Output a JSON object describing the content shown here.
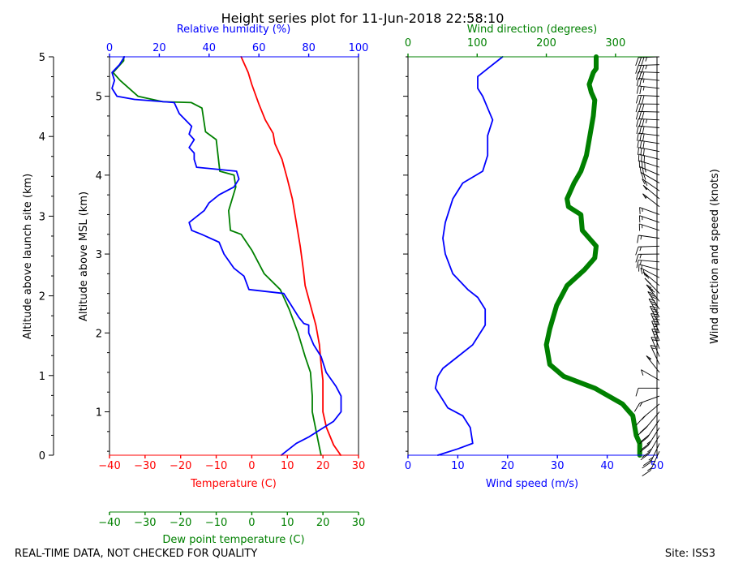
{
  "chart_data": {
    "type": "line",
    "title": "Height series plot for 11-Jun-2018 22:58:10",
    "footer_left": "REAL-TIME DATA, NOT CHECKED FOR QUALITY",
    "footer_right": "Site: ISS3",
    "colors": {
      "temperature": "#ff0000",
      "dewpoint": "#008000",
      "rh": "#0000ff",
      "wind_speed": "#0000ff",
      "wind_dir": "#008000",
      "barbs": "#000000"
    },
    "thermo_panel": {
      "xlabel_bottom": "Temperature (C)",
      "xlabel_dewpoint": "Dew point temperature (C)",
      "xlabel_top": "Relative humidity (%)",
      "ylabel_inner": "Altitude above MSL (km)",
      "ylabel_outer": "Altitude above launch site (km)",
      "xlim_temp": [
        -40,
        30
      ],
      "xticks_temp": [
        "−40",
        "−30",
        "−20",
        "−10",
        "0",
        "10",
        "20",
        "30"
      ],
      "xticks_dewpoint": [
        "−40",
        "−30",
        "−20",
        "−10",
        "0",
        "10",
        "20",
        "30"
      ],
      "xlim_rh": [
        0,
        100
      ],
      "xticks_rh": [
        "0",
        "20",
        "40",
        "60",
        "80",
        "100"
      ],
      "ylim_msl_km": [
        0.45,
        5.5
      ],
      "yticks_msl": [
        "1",
        "2",
        "3",
        "4",
        "5"
      ],
      "ylim_agl_km": [
        0,
        5
      ],
      "yticks_agl": [
        "0",
        "1",
        "2",
        "3",
        "4",
        "5"
      ],
      "series": [
        {
          "name": "Temperature",
          "axis": "temp",
          "points": [
            [
              25,
              0.45
            ],
            [
              23,
              0.58
            ],
            [
              21,
              0.8
            ],
            [
              20,
              1.0
            ],
            [
              20,
              1.2
            ],
            [
              20,
              1.4
            ],
            [
              19.5,
              1.6
            ],
            [
              19,
              1.85
            ],
            [
              18,
              2.1
            ],
            [
              16.8,
              2.3
            ],
            [
              15,
              2.6
            ],
            [
              14.5,
              2.8
            ],
            [
              13.6,
              3.1
            ],
            [
              12.5,
              3.4
            ],
            [
              11.4,
              3.7
            ],
            [
              10,
              3.95
            ],
            [
              8.5,
              4.2
            ],
            [
              6.5,
              4.4
            ],
            [
              6,
              4.53
            ],
            [
              3.8,
              4.7
            ],
            [
              2,
              4.9
            ],
            [
              0,
              5.15
            ],
            [
              -1,
              5.3
            ],
            [
              -2.5,
              5.45
            ],
            [
              -3,
              5.5
            ]
          ]
        },
        {
          "name": "Dew point",
          "axis": "temp",
          "points": [
            [
              19.5,
              0.45
            ],
            [
              19,
              0.55
            ],
            [
              17,
              1.0
            ],
            [
              17,
              1.2
            ],
            [
              16.5,
              1.5
            ],
            [
              15,
              1.7
            ],
            [
              13,
              2.0
            ],
            [
              10.5,
              2.3
            ],
            [
              8,
              2.55
            ],
            [
              3.5,
              2.75
            ],
            [
              0,
              3.05
            ],
            [
              -3,
              3.25
            ],
            [
              -6,
              3.3
            ],
            [
              -6.5,
              3.55
            ],
            [
              -4.5,
              3.85
            ],
            [
              -5,
              4.0
            ],
            [
              -9,
              4.05
            ],
            [
              -10,
              4.45
            ],
            [
              -13,
              4.55
            ],
            [
              -14,
              4.85
            ],
            [
              -17,
              4.92
            ],
            [
              -25,
              4.93
            ],
            [
              -32,
              5.0
            ],
            [
              -37,
              5.2
            ],
            [
              -39,
              5.3
            ],
            [
              -36,
              5.45
            ],
            [
              -36,
              5.5
            ]
          ]
        },
        {
          "name": "Relative humidity",
          "axis": "rh",
          "points": [
            [
              69,
              0.45
            ],
            [
              71,
              0.5
            ],
            [
              75,
              0.6
            ],
            [
              80,
              0.68
            ],
            [
              85,
              0.78
            ],
            [
              90,
              0.88
            ],
            [
              93,
              1.0
            ],
            [
              93,
              1.1
            ],
            [
              93,
              1.2
            ],
            [
              91,
              1.32
            ],
            [
              87,
              1.5
            ],
            [
              85,
              1.7
            ],
            [
              82,
              1.85
            ],
            [
              80,
              2.0
            ],
            [
              80,
              2.1
            ],
            [
              78,
              2.12
            ],
            [
              76,
              2.2
            ],
            [
              72,
              2.4
            ],
            [
              70,
              2.5
            ],
            [
              56,
              2.55
            ],
            [
              54,
              2.72
            ],
            [
              50,
              2.82
            ],
            [
              46,
              3.0
            ],
            [
              44,
              3.15
            ],
            [
              37,
              3.25
            ],
            [
              33,
              3.3
            ],
            [
              32,
              3.4
            ],
            [
              38,
              3.55
            ],
            [
              40,
              3.65
            ],
            [
              44,
              3.75
            ],
            [
              50,
              3.85
            ],
            [
              52,
              3.95
            ],
            [
              51,
              4.05
            ],
            [
              35,
              4.1
            ],
            [
              34,
              4.2
            ],
            [
              34,
              4.28
            ],
            [
              32,
              4.35
            ],
            [
              34,
              4.45
            ],
            [
              32,
              4.52
            ],
            [
              33,
              4.62
            ],
            [
              28,
              4.78
            ],
            [
              26,
              4.92
            ],
            [
              10,
              4.96
            ],
            [
              3,
              5.0
            ],
            [
              1,
              5.1
            ],
            [
              2,
              5.2
            ],
            [
              1,
              5.3
            ],
            [
              4,
              5.4
            ],
            [
              6,
              5.5
            ]
          ]
        }
      ]
    },
    "wind_panel": {
      "xlabel_bottom": "Wind speed (m/s)",
      "xlabel_top": "Wind direction (degrees)",
      "ylabel_right": "Wind direction and speed (knots)",
      "xlim_speed": [
        0,
        50
      ],
      "xticks_speed": [
        "0",
        "10",
        "20",
        "30",
        "40",
        "50"
      ],
      "xlim_dir": [
        0,
        360
      ],
      "xticks_dir": [
        "0",
        "100",
        "200",
        "300"
      ],
      "series": [
        {
          "name": "Wind speed",
          "axis": "speed",
          "points": [
            [
              6,
              0.45
            ],
            [
              10,
              0.53
            ],
            [
              13,
              0.6
            ],
            [
              12.5,
              0.8
            ],
            [
              11,
              0.95
            ],
            [
              8,
              1.05
            ],
            [
              5.5,
              1.3
            ],
            [
              6,
              1.45
            ],
            [
              7,
              1.55
            ],
            [
              10,
              1.7
            ],
            [
              13,
              1.85
            ],
            [
              15.5,
              2.1
            ],
            [
              15.5,
              2.3
            ],
            [
              14,
              2.45
            ],
            [
              12,
              2.55
            ],
            [
              9,
              2.75
            ],
            [
              7.5,
              3.0
            ],
            [
              7,
              3.2
            ],
            [
              7.5,
              3.4
            ],
            [
              9,
              3.7
            ],
            [
              11,
              3.9
            ],
            [
              15,
              4.05
            ],
            [
              16,
              4.25
            ],
            [
              16,
              4.5
            ],
            [
              17,
              4.7
            ],
            [
              16,
              4.85
            ],
            [
              15,
              5.0
            ],
            [
              14,
              5.1
            ],
            [
              14,
              5.15
            ],
            [
              14,
              5.25
            ],
            [
              16,
              5.35
            ],
            [
              19,
              5.5
            ]
          ]
        },
        {
          "name": "Wind direction",
          "axis": "dir",
          "points": [
            [
              335,
              0.45
            ],
            [
              335,
              0.6
            ],
            [
              330,
              0.7
            ],
            [
              328,
              0.8
            ],
            [
              325,
              0.95
            ],
            [
              310,
              1.1
            ],
            [
              270,
              1.3
            ],
            [
              225,
              1.45
            ],
            [
              205,
              1.6
            ],
            [
              200,
              1.85
            ],
            [
              205,
              2.05
            ],
            [
              215,
              2.35
            ],
            [
              230,
              2.6
            ],
            [
              255,
              2.8
            ],
            [
              270,
              2.95
            ],
            [
              272,
              3.1
            ],
            [
              252,
              3.3
            ],
            [
              250,
              3.5
            ],
            [
              232,
              3.6
            ],
            [
              230,
              3.7
            ],
            [
              240,
              3.9
            ],
            [
              250,
              4.05
            ],
            [
              258,
              4.25
            ],
            [
              263,
              4.5
            ],
            [
              268,
              4.75
            ],
            [
              270,
              4.95
            ],
            [
              265,
              5.05
            ],
            [
              262,
              5.15
            ],
            [
              268,
              5.3
            ],
            [
              272,
              5.35
            ],
            [
              272,
              5.5
            ]
          ]
        }
      ]
    }
  }
}
